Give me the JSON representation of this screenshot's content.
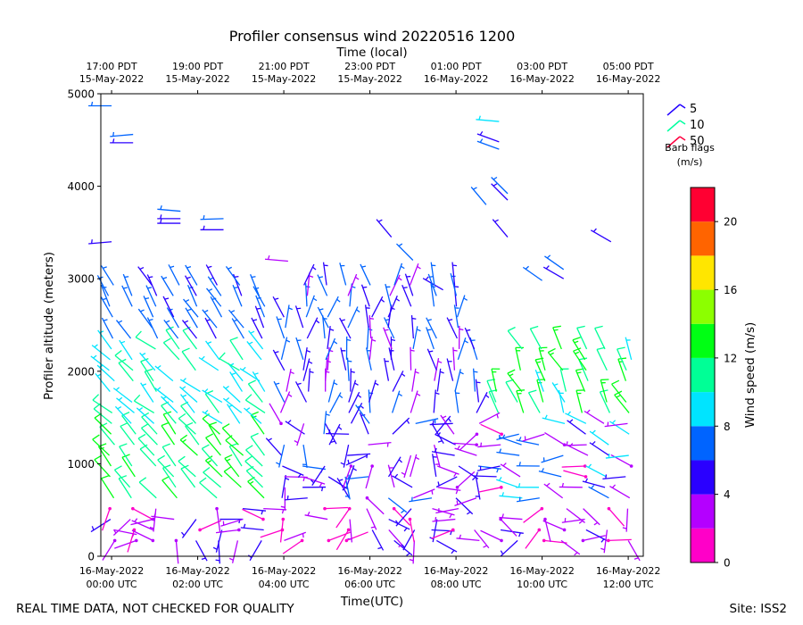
{
  "chart_data": {
    "type": "wind_barb_profile",
    "title": "Profiler consensus wind 20220516 1200",
    "top_axis_title": "Time (local)",
    "xlabel": "Time(UTC)",
    "ylabel": "Profiler altitude (meters)",
    "ylim": [
      0,
      5000
    ],
    "xlim_hours": [
      -0.25,
      12.35
    ],
    "y_ticks": [
      0,
      1000,
      2000,
      3000,
      4000,
      5000
    ],
    "bottom_ticks": [
      {
        "hour": 0,
        "line1": "16-May-2022",
        "line2": "00:00 UTC"
      },
      {
        "hour": 2,
        "line1": "16-May-2022",
        "line2": "02:00 UTC"
      },
      {
        "hour": 4,
        "line1": "16-May-2022",
        "line2": "04:00 UTC"
      },
      {
        "hour": 6,
        "line1": "16-May-2022",
        "line2": "06:00 UTC"
      },
      {
        "hour": 8,
        "line1": "16-May-2022",
        "line2": "08:00 UTC"
      },
      {
        "hour": 10,
        "line1": "16-May-2022",
        "line2": "10:00 UTC"
      },
      {
        "hour": 12,
        "line1": "16-May-2022",
        "line2": "12:00 UTC"
      }
    ],
    "top_ticks": [
      {
        "hour": 0,
        "line1": "17:00 PDT",
        "line2": "15-May-2022"
      },
      {
        "hour": 2,
        "line1": "19:00 PDT",
        "line2": "15-May-2022"
      },
      {
        "hour": 4,
        "line1": "21:00 PDT",
        "line2": "15-May-2022"
      },
      {
        "hour": 6,
        "line1": "23:00 PDT",
        "line2": "15-May-2022"
      },
      {
        "hour": 8,
        "line1": "01:00 PDT",
        "line2": "16-May-2022"
      },
      {
        "hour": 10,
        "line1": "03:00 PDT",
        "line2": "16-May-2022"
      },
      {
        "hour": 12,
        "line1": "05:00 PDT",
        "line2": "16-May-2022"
      }
    ],
    "barb_legend": {
      "entries": [
        {
          "label": "5",
          "color": "#2200ff"
        },
        {
          "label": "10",
          "color": "#00ffa0"
        },
        {
          "label": "50",
          "color": "#ff0040"
        }
      ],
      "title_line1": "Barb flags",
      "title_line2": "(m/s)"
    },
    "colorbar": {
      "label": "Wind speed (m/s)",
      "min": 0,
      "max": 22,
      "ticks": [
        0,
        4,
        8,
        12,
        16,
        20
      ],
      "bins": [
        {
          "from": 0,
          "to": 2,
          "color": "#ff00c8"
        },
        {
          "from": 2,
          "to": 4,
          "color": "#b400ff"
        },
        {
          "from": 4,
          "to": 6,
          "color": "#2a00ff"
        },
        {
          "from": 6,
          "to": 8,
          "color": "#0064ff"
        },
        {
          "from": 8,
          "to": 10,
          "color": "#00e4ff"
        },
        {
          "from": 10,
          "to": 12,
          "color": "#00ff96"
        },
        {
          "from": 12,
          "to": 14,
          "color": "#00ff14"
        },
        {
          "from": 14,
          "to": 16,
          "color": "#8cff00"
        },
        {
          "from": 16,
          "to": 18,
          "color": "#ffe600"
        },
        {
          "from": 18,
          "to": 20,
          "color": "#ff6400"
        },
        {
          "from": 20,
          "to": 22,
          "color": "#ff0032"
        }
      ]
    },
    "barbs": [
      {
        "t": 0.0,
        "z": 4870,
        "ws": 6.5,
        "wd": 270
      },
      {
        "t": 0.5,
        "z": 4560,
        "ws": 6.5,
        "wd": 265
      },
      {
        "t": 0.5,
        "z": 4470,
        "ws": 5.0,
        "wd": 270
      },
      {
        "t": 1.6,
        "z": 3730,
        "ws": 6.5,
        "wd": 275
      },
      {
        "t": 1.6,
        "z": 3650,
        "ws": 5.0,
        "wd": 270
      },
      {
        "t": 1.6,
        "z": 3600,
        "ws": 5.0,
        "wd": 270
      },
      {
        "t": 2.6,
        "z": 3650,
        "ws": 6.5,
        "wd": 268
      },
      {
        "t": 2.6,
        "z": 3530,
        "ws": 5.0,
        "wd": 270
      },
      {
        "t": 0.0,
        "z": 3400,
        "ws": 5.0,
        "wd": 265
      },
      {
        "t": 4.1,
        "z": 3190,
        "ws": 3.0,
        "wd": 275
      },
      {
        "t": 9.0,
        "z": 4700,
        "ws": 9.0,
        "wd": 275
      },
      {
        "t": 9.0,
        "z": 4480,
        "ws": 5.5,
        "wd": 290
      },
      {
        "t": 9.0,
        "z": 4400,
        "ws": 6.5,
        "wd": 290
      },
      {
        "t": 8.7,
        "z": 3800,
        "ws": 6.5,
        "wd": 320
      },
      {
        "t": 9.2,
        "z": 3920,
        "ws": 6.5,
        "wd": 315
      },
      {
        "t": 9.2,
        "z": 3850,
        "ws": 5.0,
        "wd": 315
      },
      {
        "t": 9.2,
        "z": 3450,
        "ws": 5.0,
        "wd": 320
      },
      {
        "t": 10.5,
        "z": 3100,
        "ws": 6.5,
        "wd": 305
      },
      {
        "t": 10.5,
        "z": 3000,
        "ws": 5.0,
        "wd": 300
      },
      {
        "t": 10.0,
        "z": 2980,
        "ws": 6.5,
        "wd": 305
      },
      {
        "t": 11.6,
        "z": 3400,
        "ws": 5.0,
        "wd": 300
      },
      {
        "t": 6.5,
        "z": 3450,
        "ws": 5.0,
        "wd": 320
      },
      {
        "t": 7.0,
        "z": 3200,
        "ws": 6.5,
        "wd": 315
      },
      {
        "t": 7.7,
        "z": 2880,
        "ws": 5.0,
        "wd": 300
      }
    ],
    "footer_left": "REAL TIME DATA, NOT CHECKED FOR QUALITY",
    "footer_right": "Site: ISS2"
  }
}
